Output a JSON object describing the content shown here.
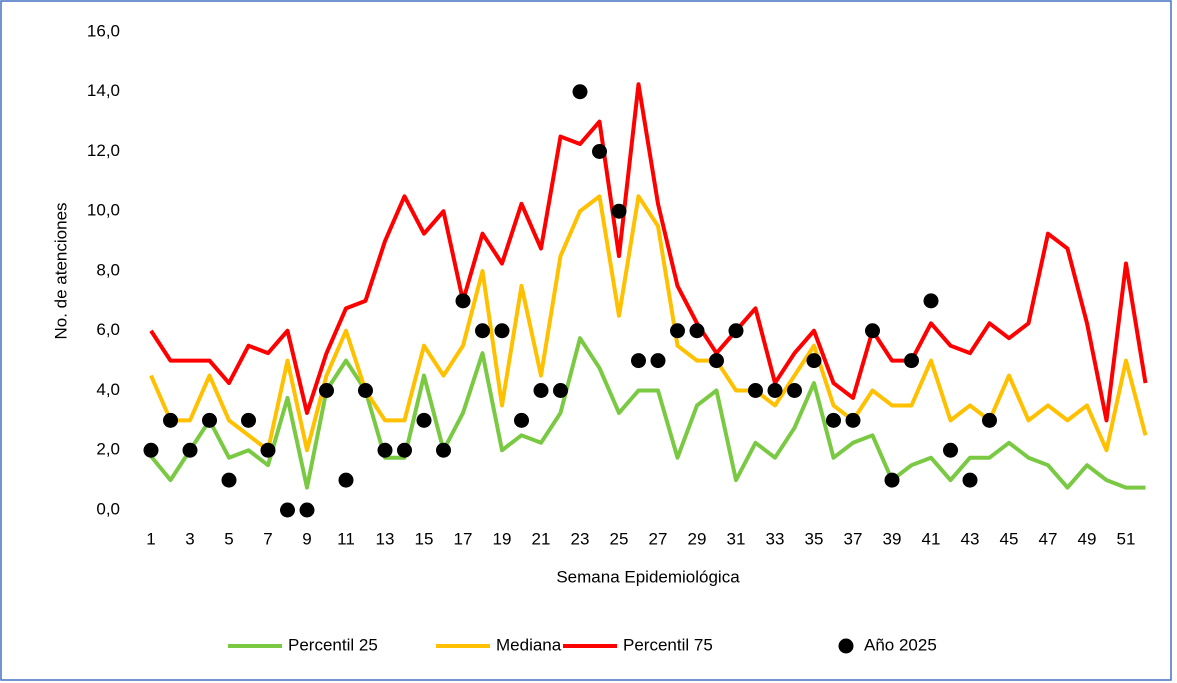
{
  "chart_data": {
    "type": "line",
    "y_label": "No. de atenciones",
    "x_label": "Semana Epidemiológica",
    "categories": [
      "1",
      null,
      "3",
      null,
      "5",
      null,
      "7",
      null,
      "9",
      null,
      "11",
      null,
      "13",
      null,
      "15",
      null,
      "17",
      null,
      "19",
      null,
      "21",
      null,
      "23",
      null,
      "25",
      null,
      "27",
      null,
      "29",
      null,
      "31",
      null,
      "33",
      null,
      "35",
      null,
      "37",
      null,
      "39",
      null,
      "41",
      null,
      "43",
      null,
      "45",
      null,
      "47",
      null,
      "49",
      null,
      "51",
      null
    ],
    "ylim": [
      0,
      16
    ],
    "yticks": [
      {
        "value": 0,
        "label": "0,0"
      },
      {
        "value": 2,
        "label": "2,0"
      },
      {
        "value": 4,
        "label": "4,0"
      },
      {
        "value": 6,
        "label": "6,0"
      },
      {
        "value": 8,
        "label": "8,0"
      },
      {
        "value": 10,
        "label": "10,0"
      },
      {
        "value": 12,
        "label": "12,0"
      },
      {
        "value": 14,
        "label": "14,0"
      },
      {
        "value": 16,
        "label": "16,0"
      }
    ],
    "grid": false,
    "legend": "bottom",
    "series": [
      {
        "name": "Percentil 25",
        "color": "#7ac943",
        "type": "line",
        "values": [
          1.8,
          1.0,
          2.0,
          3.0,
          1.75,
          2.0,
          1.5,
          3.75,
          0.75,
          4.0,
          5.0,
          4.0,
          1.75,
          1.75,
          4.5,
          2.0,
          3.25,
          5.25,
          2.0,
          2.5,
          2.25,
          3.25,
          5.75,
          4.75,
          3.25,
          4.0,
          4.0,
          1.75,
          3.5,
          4.0,
          1.0,
          2.25,
          1.75,
          2.75,
          4.25,
          1.75,
          2.25,
          2.5,
          1.0,
          1.5,
          1.75,
          1.0,
          1.75,
          1.75,
          2.25,
          1.75,
          1.5,
          0.75,
          1.5,
          1.0,
          0.75,
          0.75
        ]
      },
      {
        "name": "Mediana",
        "color": "#ffc000",
        "type": "line",
        "values": [
          4.5,
          3.0,
          3.0,
          4.5,
          3.0,
          2.5,
          2.0,
          5.0,
          2.0,
          4.5,
          6.0,
          4.0,
          3.0,
          3.0,
          5.5,
          4.5,
          5.5,
          8.0,
          3.5,
          7.5,
          4.5,
          8.5,
          10.0,
          10.5,
          6.5,
          10.5,
          9.5,
          5.5,
          5.0,
          5.0,
          4.0,
          4.0,
          3.5,
          4.5,
          5.5,
          3.5,
          3.0,
          4.0,
          3.5,
          3.5,
          5.0,
          3.0,
          3.5,
          3.0,
          4.5,
          3.0,
          3.5,
          3.0,
          3.5,
          2.0,
          5.0,
          2.5
        ]
      },
      {
        "name": "Percentil 75",
        "color": "#ff0000",
        "type": "line",
        "values": [
          6.0,
          5.0,
          5.0,
          5.0,
          4.25,
          5.5,
          5.25,
          6.0,
          3.25,
          5.25,
          6.75,
          7.0,
          9.0,
          10.5,
          9.25,
          10.0,
          7.0,
          9.25,
          8.25,
          10.25,
          8.75,
          12.5,
          12.25,
          13.0,
          8.5,
          14.25,
          10.25,
          7.5,
          6.25,
          5.25,
          6.0,
          6.75,
          4.25,
          5.25,
          6.0,
          4.25,
          3.75,
          6.0,
          5.0,
          5.0,
          6.25,
          5.5,
          5.25,
          6.25,
          5.75,
          6.25,
          9.25,
          8.75,
          6.25,
          3.0,
          8.25,
          4.25
        ]
      },
      {
        "name": "Año 2025",
        "color": "#000000",
        "type": "scatter",
        "values": [
          2,
          3,
          2,
          3,
          1,
          3,
          2,
          0,
          0,
          4,
          1,
          4,
          2,
          2,
          3,
          2,
          7,
          6,
          6,
          3,
          4,
          4,
          14,
          12,
          10,
          5,
          5,
          6,
          6,
          5,
          6,
          4,
          4,
          4,
          5,
          3,
          3,
          6,
          1,
          5,
          7,
          2,
          1,
          3,
          null,
          null,
          null,
          null,
          null,
          null,
          null,
          null
        ]
      }
    ]
  }
}
